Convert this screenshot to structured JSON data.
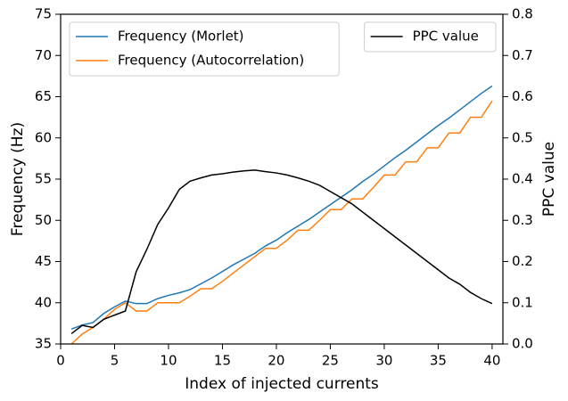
{
  "chart_data": {
    "type": "line",
    "xlabel": "Index of injected currents",
    "ylabel": "Frequency (Hz)",
    "y2label": "PPC value",
    "x": [
      1,
      2,
      3,
      4,
      5,
      6,
      7,
      8,
      9,
      10,
      11,
      12,
      13,
      14,
      15,
      16,
      17,
      18,
      19,
      20,
      21,
      22,
      23,
      24,
      25,
      26,
      27,
      28,
      29,
      30,
      31,
      32,
      33,
      34,
      35,
      36,
      37,
      38,
      39,
      40
    ],
    "series": [
      {
        "name": "Frequency (Morlet)",
        "color": "#1f77b4",
        "values": [
          36.8,
          37.3,
          37.6,
          38.7,
          39.5,
          40.2,
          39.9,
          39.9,
          40.5,
          40.9,
          41.2,
          41.6,
          42.3,
          43.0,
          43.8,
          44.6,
          45.3,
          46.0,
          46.9,
          47.6,
          48.5,
          49.3,
          50.1,
          51.0,
          51.9,
          52.8,
          53.7,
          54.7,
          55.6,
          56.6,
          57.6,
          58.5,
          59.5,
          60.5,
          61.5,
          62.4,
          63.4,
          64.4,
          65.4,
          66.3
        ]
      },
      {
        "name": "Frequency (Autocorrelation)",
        "color": "#ff7f0e",
        "values": [
          35.0,
          36.2,
          37.0,
          38.0,
          39.2,
          40.0,
          39.0,
          39.0,
          40.0,
          40.0,
          40.0,
          40.8,
          41.7,
          41.7,
          42.6,
          43.6,
          44.6,
          45.6,
          46.6,
          46.6,
          47.6,
          48.8,
          48.8,
          50.0,
          51.3,
          51.3,
          52.6,
          52.6,
          54.0,
          55.5,
          55.5,
          57.1,
          57.1,
          58.8,
          58.8,
          60.6,
          60.6,
          62.5,
          62.5,
          64.5
        ]
      },
      {
        "name": "PPC value",
        "color": "#000000",
        "axis": "y2",
        "values": [
          0.025,
          0.045,
          0.04,
          0.06,
          0.07,
          0.08,
          0.175,
          0.23,
          0.29,
          0.33,
          0.375,
          0.395,
          0.403,
          0.41,
          0.413,
          0.417,
          0.42,
          0.422,
          0.418,
          0.415,
          0.41,
          0.403,
          0.395,
          0.385,
          0.37,
          0.355,
          0.34,
          0.32,
          0.3,
          0.28,
          0.26,
          0.24,
          0.22,
          0.2,
          0.18,
          0.16,
          0.145,
          0.125,
          0.11,
          0.098
        ]
      }
    ],
    "xlim": [
      0,
      41
    ],
    "xticks": [
      0,
      5,
      10,
      15,
      20,
      25,
      30,
      35,
      40
    ],
    "ylim": [
      35,
      75
    ],
    "yticks": [
      35,
      40,
      45,
      50,
      55,
      60,
      65,
      70,
      75
    ],
    "y2lim": [
      0,
      0.8
    ],
    "y2ticks": [
      {
        "value": 0,
        "label": "0.0"
      },
      0.1,
      0.2,
      0.3,
      0.4,
      0.5,
      0.6,
      0.7,
      0.8
    ],
    "legend": "upper left",
    "y2_legend": "upper right"
  }
}
